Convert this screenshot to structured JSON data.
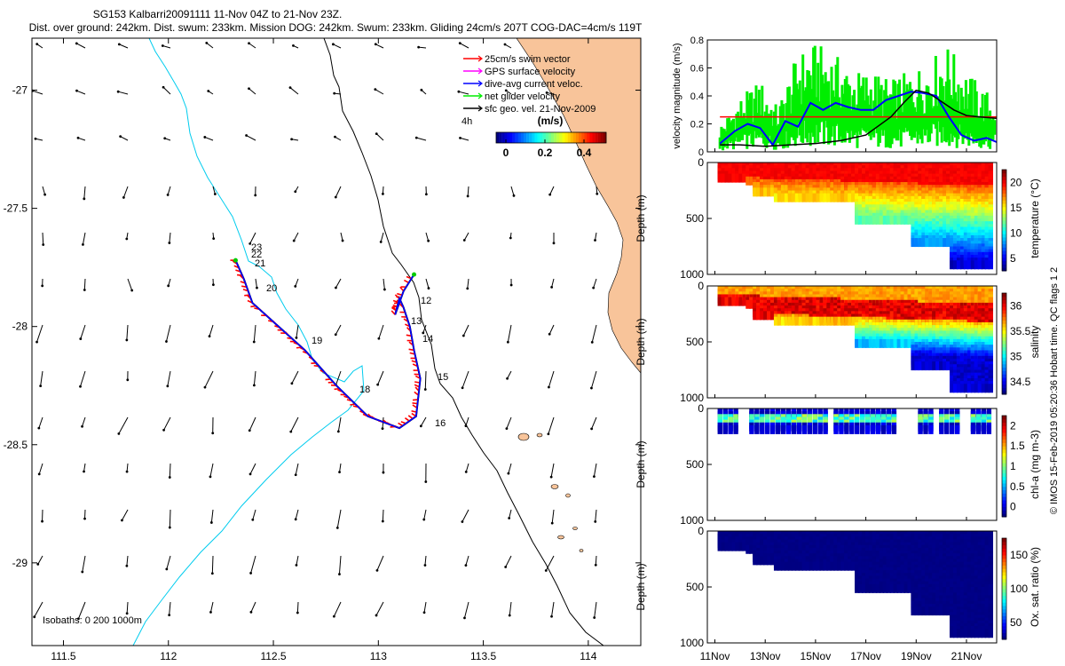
{
  "header": {
    "title": "SG153 Kalbarri20091111 11-Nov 04Z to 21-Nov 23Z.",
    "subtitle": "Dist. over ground: 242km. Dist. swum: 233km. Mission DOG: 242km. Swum: 233km. Gliding 24cm/s 207T COG-DAC=4cm/s 119T"
  },
  "legend": {
    "items": [
      {
        "label": "25cm/s swim vector",
        "color": "#ff0000"
      },
      {
        "label": "GPS surface velocity",
        "color": "#ff00ff"
      },
      {
        "label": "dive-avg current veloc.",
        "color": "#0000ff"
      },
      {
        "label": "net glider velocity",
        "color": "#00ee00"
      },
      {
        "label": "sfc geo. vel. 21-Nov-2009",
        "color": "#000000"
      }
    ],
    "scale_label": "4h",
    "colorbar_unit": "(m/s)",
    "colorbar_ticks": [
      "0",
      "0.2",
      "0.4"
    ]
  },
  "map": {
    "x_ticks": [
      "111.5",
      "112",
      "112.5",
      "113",
      "113.5",
      "114"
    ],
    "y_ticks": [
      "-27",
      "-27.5",
      "-28",
      "-28.5",
      "-29"
    ],
    "isobaths_label": "Isobaths: 0   200  1000m",
    "day_labels": [
      "12",
      "13",
      "14",
      "15",
      "16",
      "18",
      "19",
      "20",
      "21",
      "22",
      "23"
    ],
    "colors": {
      "land": "#f8c49a",
      "isobath_200": "#00ccee",
      "isobath_1000": "#000000",
      "track_red": "#ff0000",
      "track_blue": "#0000ff"
    }
  },
  "panels": {
    "velocity": {
      "ylabel": "velocity magnitude (m/s)",
      "y_ticks": [
        "0",
        "0.2",
        "0.4",
        "0.6",
        "0.8"
      ]
    },
    "temperature": {
      "ylabel": "Depth (m)",
      "cbar_label": "temperature (°C)",
      "cbar_ticks": [
        "5",
        "10",
        "15",
        "20"
      ],
      "y_ticks": [
        "0",
        "500",
        "1000"
      ]
    },
    "salinity": {
      "ylabel": "Depth (m)",
      "cbar_label": "salinity",
      "cbar_ticks": [
        "34.5",
        "35",
        "35.5",
        "36"
      ],
      "y_ticks": [
        "0",
        "500",
        "1000"
      ]
    },
    "chla": {
      "ylabel": "Depth (m)",
      "cbar_label": "chl-a (mg m-3)",
      "cbar_ticks": [
        "0",
        "0.5",
        "1",
        "1.5",
        "2"
      ],
      "y_ticks": [
        "0",
        "500",
        "1000"
      ]
    },
    "oxygen": {
      "ylabel": "Depth (m)",
      "cbar_label": "Ox. sat. ratio (%)",
      "cbar_ticks": [
        "50",
        "100",
        "150"
      ],
      "y_ticks": [
        "0",
        "500",
        "1000"
      ]
    },
    "x_ticks": [
      "11Nov",
      "13Nov",
      "15Nov",
      "17Nov",
      "19Nov",
      "21Nov"
    ]
  },
  "credit": "© IMOS 15-Feb-2019 05:20:36 Hobart time. QC flags 1 2",
  "chart_data": [
    {
      "type": "scatter",
      "title": "SG153 Kalbarri20091111 11-Nov 04Z to 21-Nov 23Z.",
      "xlabel": "",
      "ylabel": "",
      "xlim": [
        111.35,
        114.25
      ],
      "ylim": [
        -29.35,
        -26.78
      ],
      "series": [
        {
          "name": "dive-avg current veloc.",
          "x": [
            112.32,
            112.36,
            112.4,
            112.5,
            112.65,
            112.8,
            112.95,
            113.1,
            113.18,
            113.2,
            113.17,
            113.15,
            113.12,
            113.1,
            113.08,
            113.12,
            113.17
          ],
          "y": [
            -27.72,
            -27.8,
            -27.9,
            -27.98,
            -28.1,
            -28.25,
            -28.38,
            -28.43,
            -28.38,
            -28.22,
            -28.1,
            -28.0,
            -27.92,
            -27.88,
            -27.95,
            -27.85,
            -27.78
          ]
        }
      ]
    },
    {
      "type": "line",
      "xlabel": "",
      "ylabel": "velocity magnitude (m/s)",
      "xlim": [
        10.7,
        22.2
      ],
      "ylim": [
        0,
        0.8
      ],
      "series": [
        {
          "name": "25cm/s swim vector",
          "x": [
            11.2,
            22.2
          ],
          "y": [
            0.25,
            0.25
          ]
        },
        {
          "name": "dive-avg current veloc.",
          "x": [
            11.2,
            11.8,
            12.3,
            12.8,
            13.3,
            13.8,
            14.3,
            14.8,
            15.3,
            15.8,
            16.3,
            16.8,
            17.3,
            17.8,
            18.3,
            18.8,
            19.3,
            19.8,
            20.3,
            20.8,
            21.3,
            21.8,
            22.2
          ],
          "y": [
            0.06,
            0.15,
            0.2,
            0.17,
            0.05,
            0.22,
            0.18,
            0.35,
            0.3,
            0.35,
            0.32,
            0.3,
            0.3,
            0.37,
            0.4,
            0.43,
            0.42,
            0.4,
            0.25,
            0.12,
            0.08,
            0.1,
            0.07
          ]
        },
        {
          "name": "net glider velocity",
          "x": [
            11.2,
            12.0,
            12.8,
            13.5,
            14.3,
            15.0,
            15.7,
            16.5,
            17.3,
            18.0,
            18.8,
            19.5,
            20.2,
            21.0,
            21.7,
            22.2
          ],
          "y": [
            0.15,
            0.3,
            0.4,
            0.25,
            0.55,
            0.6,
            0.55,
            0.45,
            0.45,
            0.4,
            0.45,
            0.5,
            0.6,
            0.45,
            0.35,
            0.3
          ]
        },
        {
          "name": "sfc geo. vel. 21-Nov-2009",
          "x": [
            11.2,
            12.0,
            13.0,
            14.0,
            15.0,
            16.0,
            17.0,
            18.0,
            18.5,
            19.0,
            19.5,
            20.0,
            20.5,
            21.0,
            21.5,
            22.2
          ],
          "y": [
            0.05,
            0.05,
            0.04,
            0.05,
            0.06,
            0.08,
            0.12,
            0.25,
            0.35,
            0.44,
            0.42,
            0.36,
            0.3,
            0.26,
            0.25,
            0.24
          ]
        }
      ]
    }
  ]
}
